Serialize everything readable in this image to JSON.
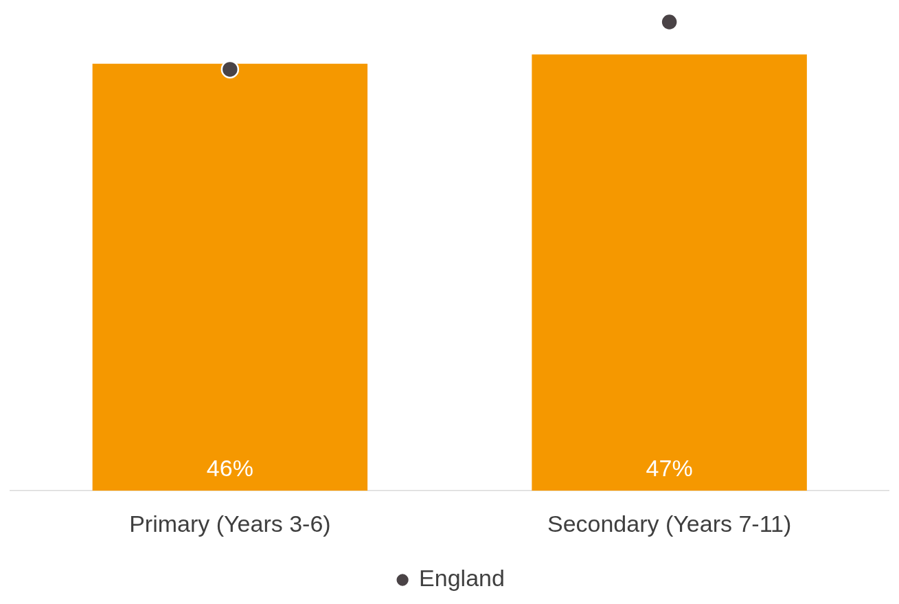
{
  "chart_data": {
    "type": "bar",
    "categories": [
      "Primary (Years 3-6)",
      "Secondary (Years 7-11)"
    ],
    "series": [
      {
        "color": "#f59800",
        "values": [
          46,
          47
        ],
        "value_labels": [
          "46%",
          "47%"
        ]
      },
      {
        "name": "England",
        "type": "scatter",
        "color": "#4a4346",
        "values": [
          45.4,
          50.5
        ]
      }
    ],
    "legend": "bottom",
    "grid": false,
    "marker": "circle"
  }
}
